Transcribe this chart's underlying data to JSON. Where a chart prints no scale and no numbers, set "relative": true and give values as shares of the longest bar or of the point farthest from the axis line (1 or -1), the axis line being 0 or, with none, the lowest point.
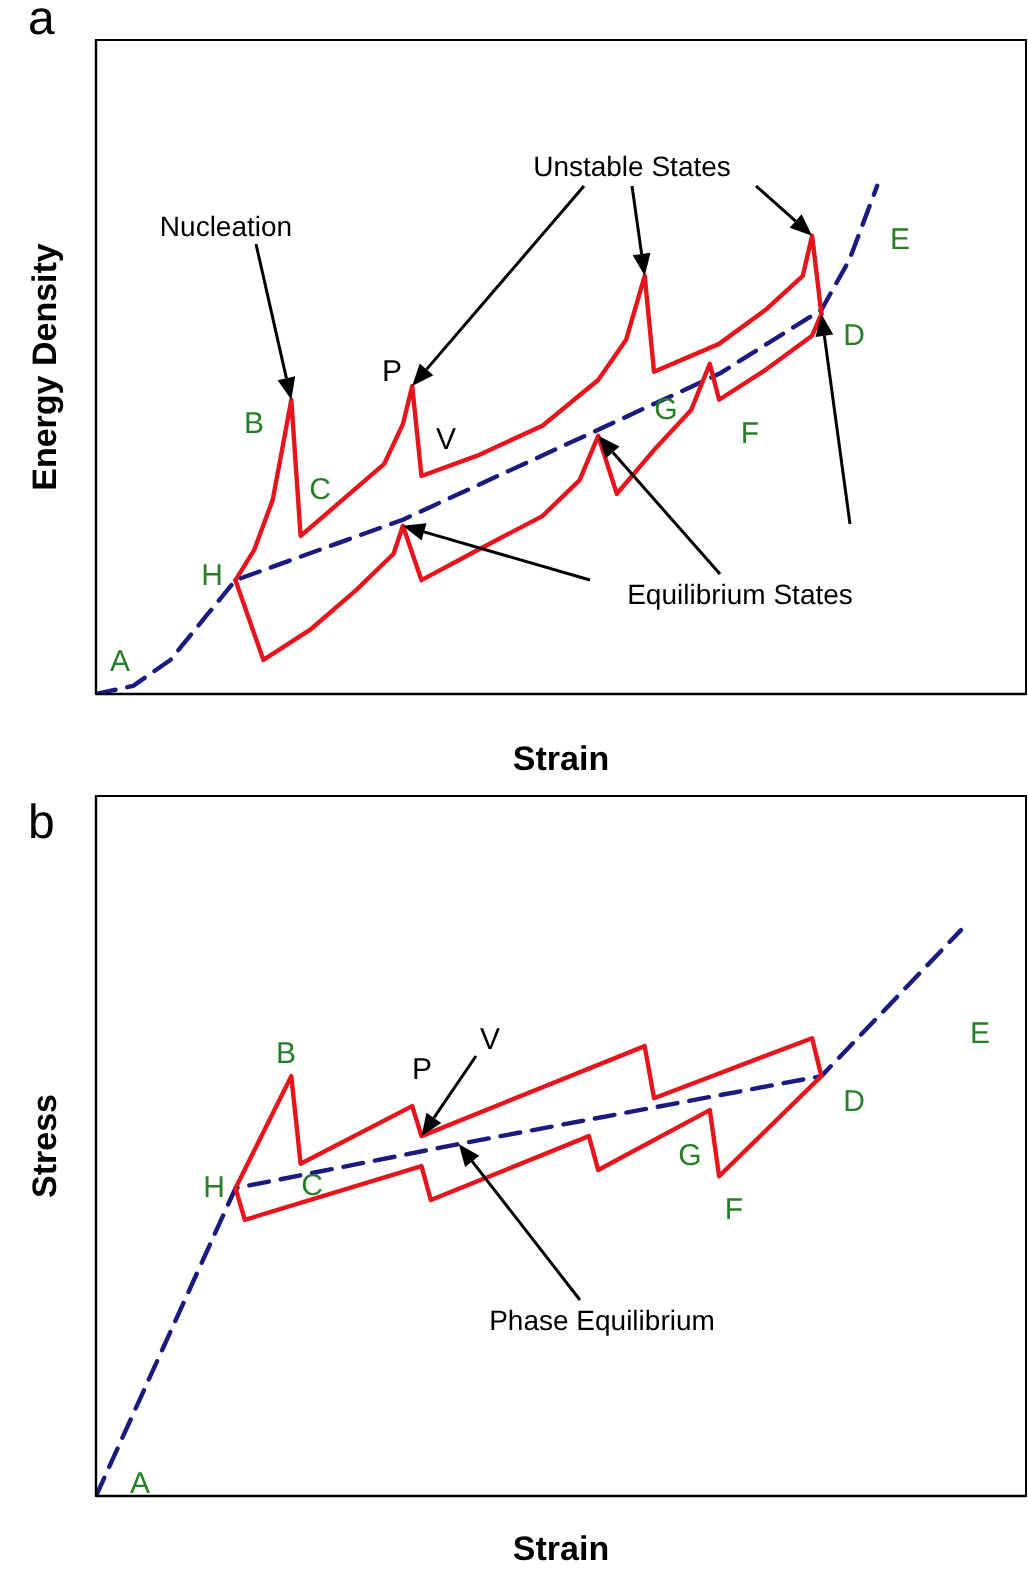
{
  "chart_data": [
    {
      "type": "line",
      "title": "a",
      "xlabel": "Strain",
      "ylabel": "Energy Density",
      "relative": true,
      "marker": "none",
      "categories": [
        null,
        null,
        null,
        null,
        null,
        null,
        null,
        null,
        null,
        null,
        null,
        null,
        null,
        null,
        null,
        null,
        null,
        null,
        null,
        null,
        null,
        null,
        null,
        null,
        null,
        null,
        null,
        null,
        null,
        null,
        null,
        null,
        null,
        null,
        null,
        null,
        null,
        null,
        null,
        null,
        null,
        null,
        null,
        null,
        null,
        null,
        null,
        null,
        null,
        null,
        null,
        null,
        null,
        null,
        null,
        null,
        null,
        null,
        null,
        null,
        null,
        null,
        null,
        null,
        null,
        null,
        null,
        null,
        null,
        null,
        null,
        null,
        null,
        null,
        null,
        null,
        null,
        null,
        null,
        null,
        null,
        null,
        null,
        null,
        null,
        null,
        null,
        null,
        null,
        null,
        null,
        null,
        null,
        null,
        null,
        null,
        null,
        null,
        null,
        null,
        null
      ],
      "series": [
        {
          "color": "#1a1a80",
          "line_style": "dashed",
          "values": [
            0,
            null,
            null,
            null,
            0.016,
            null,
            null,
            null,
            0.067,
            null,
            null,
            null,
            0.157,
            null,
            null,
            0.224,
            null,
            null,
            null,
            null,
            null,
            null,
            null,
            null,
            null,
            null,
            null,
            null,
            null,
            null,
            null,
            null,
            null,
            0.343,
            null,
            null,
            null,
            null,
            null,
            null,
            null,
            null,
            null,
            null,
            null,
            null,
            null,
            null,
            null,
            null,
            null,
            null,
            null,
            null,
            0.52,
            null,
            null,
            null,
            null,
            null,
            null,
            null,
            null,
            null,
            null,
            null,
            null,
            0.63,
            null,
            null,
            null,
            null,
            null,
            null,
            null,
            null,
            null,
            null,
            0.756,
            null,
            null,
            0.854,
            null,
            null,
            1,
            null,
            null,
            null,
            null,
            null,
            null,
            null,
            null,
            null,
            null,
            null,
            null,
            null,
            null,
            null,
            null
          ]
        },
        {
          "color": "#e8141c",
          "line_style": "solid",
          "values": [
            null,
            null,
            null,
            null,
            null,
            null,
            null,
            null,
            null,
            null,
            null,
            null,
            null,
            null,
            null,
            0.224,
            null,
            0.283,
            null,
            0.382,
            0.48,
            0.579,
            0.311,
            null,
            null,
            null,
            0.374,
            null,
            null,
            null,
            null,
            0.453,
            null,
            0.531,
            0.606,
            0.429,
            null,
            null,
            null,
            null,
            null,
            0.469,
            null,
            null,
            null,
            null,
            null,
            null,
            0.528,
            null,
            null,
            null,
            null,
            null,
            0.618,
            null,
            null,
            0.697,
            null,
            0.823,
            0.634,
            null,
            null,
            null,
            null,
            null,
            null,
            0.689,
            null,
            null,
            null,
            null,
            0.756,
            null,
            null,
            null,
            0.823,
            0.902,
            0.748,
            null,
            null,
            null,
            null,
            null,
            null,
            null,
            null,
            null,
            null,
            null,
            null,
            null,
            null,
            null,
            null,
            null,
            null,
            null,
            null,
            null,
            null
          ]
        },
        {
          "color": "#e8141c",
          "line_style": "solid",
          "values": [
            null,
            null,
            null,
            null,
            null,
            null,
            null,
            null,
            null,
            null,
            null,
            null,
            null,
            null,
            null,
            0.224,
            null,
            null,
            0.067,
            null,
            null,
            null,
            null,
            0.126,
            null,
            null,
            null,
            null,
            0.205,
            null,
            null,
            null,
            0.276,
            0.331,
            null,
            0.224,
            null,
            null,
            null,
            null,
            null,
            0.283,
            null,
            null,
            null,
            null,
            null,
            null,
            0.35,
            null,
            null,
            null,
            0.421,
            null,
            0.508,
            null,
            0.394,
            null,
            null,
            null,
            0.48,
            null,
            null,
            null,
            0.559,
            null,
            0.65,
            0.579,
            null,
            null,
            null,
            null,
            0.638,
            null,
            null,
            null,
            null,
            0.705,
            0.748,
            null,
            null,
            null,
            null,
            null,
            null,
            null,
            null,
            null,
            null,
            null,
            null,
            null,
            null,
            null,
            null,
            null,
            null,
            null,
            null,
            null,
            null
          ]
        }
      ],
      "annotations": [
        "A",
        "B",
        "C",
        "P",
        "V",
        "G",
        "F",
        "D",
        "E",
        "H",
        "Nucleation",
        "Unstable States",
        "Equilibrium States"
      ]
    },
    {
      "type": "line",
      "title": "b",
      "xlabel": "Strain",
      "ylabel": "Stress",
      "relative": true,
      "marker": "none",
      "categories": [
        null,
        null,
        null,
        null,
        null,
        null,
        null,
        null,
        null,
        null,
        null,
        null,
        null,
        null,
        null,
        null,
        null,
        null,
        null,
        null,
        null,
        null,
        null,
        null,
        null,
        null,
        null,
        null,
        null,
        null,
        null,
        null,
        null,
        null,
        null,
        null,
        null,
        null,
        null,
        null,
        null,
        null,
        null,
        null,
        null,
        null,
        null,
        null,
        null,
        null,
        null,
        null,
        null,
        null,
        null,
        null,
        null,
        null,
        null,
        null,
        null,
        null,
        null,
        null,
        null,
        null,
        null,
        null,
        null,
        null,
        null,
        null,
        null,
        null,
        null,
        null,
        null,
        null,
        null,
        null,
        null,
        null,
        null,
        null,
        null,
        null,
        null,
        null,
        null,
        null,
        null,
        null,
        null,
        null,
        null,
        null,
        null,
        null,
        null,
        null,
        null
      ],
      "series": [
        {
          "color": "#1a1a80",
          "line_style": "dashed",
          "values": [
            0,
            null,
            null,
            null,
            null,
            null,
            null,
            null,
            null,
            null,
            null,
            null,
            null,
            null,
            null,
            0.544,
            null,
            null,
            null,
            null,
            null,
            null,
            null,
            null,
            null,
            null,
            null,
            null,
            null,
            null,
            null,
            null,
            null,
            null,
            null,
            null,
            null,
            null,
            null,
            0.622,
            null,
            null,
            null,
            null,
            null,
            null,
            null,
            null,
            null,
            null,
            null,
            null,
            null,
            null,
            null,
            null,
            null,
            null,
            null,
            null,
            null,
            null,
            null,
            null,
            null,
            null,
            null,
            null,
            null,
            null,
            null,
            null,
            null,
            null,
            null,
            null,
            null,
            null,
            0.742,
            null,
            null,
            null,
            null,
            null,
            null,
            null,
            null,
            null,
            null,
            null,
            null,
            null,
            null,
            1,
            null,
            null,
            null,
            null,
            null,
            null,
            null
          ]
        },
        {
          "color": "#e8141c",
          "line_style": "solid",
          "values": [
            null,
            null,
            null,
            null,
            null,
            null,
            null,
            null,
            null,
            null,
            null,
            null,
            null,
            null,
            null,
            0.544,
            null,
            null,
            null,
            null,
            null,
            0.742,
            0.587,
            null,
            null,
            null,
            null,
            null,
            null,
            null,
            null,
            null,
            null,
            null,
            0.689,
            0.636,
            null,
            null,
            null,
            null,
            null,
            null,
            null,
            null,
            null,
            null,
            null,
            null,
            null,
            null,
            null,
            null,
            null,
            null,
            null,
            null,
            null,
            null,
            null,
            0.795,
            0.703,
            null,
            null,
            null,
            null,
            null,
            null,
            null,
            null,
            null,
            null,
            null,
            null,
            null,
            null,
            null,
            null,
            0.809,
            0.742,
            null,
            null,
            null,
            null,
            null,
            null,
            null,
            null,
            null,
            null,
            null,
            null,
            null,
            null,
            null,
            null,
            null,
            null,
            null,
            null,
            null,
            null
          ]
        },
        {
          "color": "#e8141c",
          "line_style": "solid",
          "values": [
            null,
            null,
            null,
            null,
            null,
            null,
            null,
            null,
            null,
            null,
            null,
            null,
            null,
            null,
            null,
            0.544,
            0.488,
            null,
            null,
            null,
            null,
            null,
            null,
            null,
            null,
            null,
            null,
            null,
            null,
            null,
            null,
            null,
            null,
            null,
            null,
            0.583,
            0.523,
            null,
            null,
            null,
            null,
            null,
            null,
            null,
            null,
            null,
            null,
            null,
            null,
            null,
            null,
            null,
            null,
            0.636,
            0.576,
            null,
            null,
            null,
            null,
            null,
            null,
            null,
            null,
            null,
            null,
            null,
            0.682,
            0.565,
            null,
            null,
            null,
            null,
            null,
            null,
            null,
            null,
            null,
            null,
            0.742,
            null,
            null,
            null,
            null,
            null,
            null,
            null,
            null,
            null,
            null,
            null,
            null,
            null,
            null,
            null,
            null,
            null,
            null,
            null,
            null,
            null,
            null
          ]
        }
      ],
      "annotations": [
        "A",
        "B",
        "C",
        "P",
        "V",
        "G",
        "F",
        "D",
        "E",
        "H",
        "Phase Equilibrium"
      ]
    }
  ]
}
